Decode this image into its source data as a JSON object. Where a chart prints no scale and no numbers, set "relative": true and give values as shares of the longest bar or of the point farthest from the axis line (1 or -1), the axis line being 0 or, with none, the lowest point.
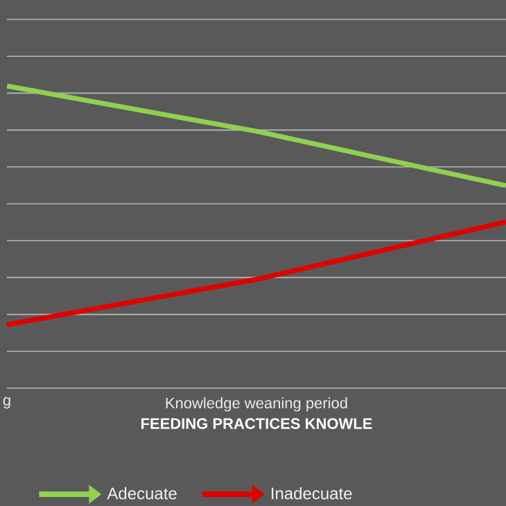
{
  "chart_data": {
    "type": "line",
    "relative": true,
    "categories": [
      "g",
      "Knowledge weaning period",
      null
    ],
    "xlabel": "FEEDING PRACTICES KNOWLE",
    "grid": "y",
    "legend": "bottom",
    "series": [
      {
        "name": "Adecuate",
        "color": "#92d050",
        "values": [
          1,
          0.85,
          0.67
        ]
      },
      {
        "name": "Inadecuate",
        "color": "#e00000",
        "values": [
          0.21,
          0.36,
          0.55
        ]
      }
    ]
  }
}
